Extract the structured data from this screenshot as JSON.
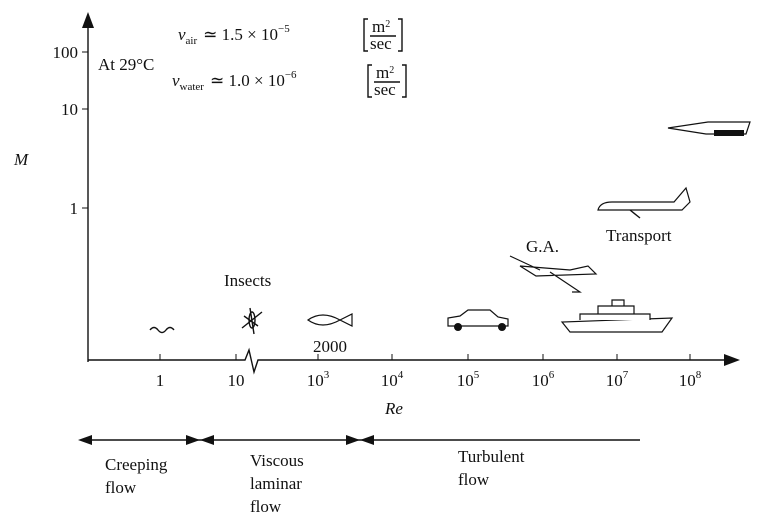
{
  "axes": {
    "y_label": "M",
    "x_label": "Re",
    "y_ticks": [
      "100",
      "10",
      "1"
    ],
    "x_ticks": [
      {
        "base": "1"
      },
      {
        "base": "10"
      },
      {
        "base": "10",
        "exp": "3"
      },
      {
        "base": "10",
        "exp": "4"
      },
      {
        "base": "10",
        "exp": "5"
      },
      {
        "base": "10",
        "exp": "6"
      },
      {
        "base": "10",
        "exp": "7"
      },
      {
        "base": "10",
        "exp": "8"
      }
    ]
  },
  "temperature": "At 29°C",
  "formulas": [
    {
      "symbol": "ν",
      "sub": "air",
      "relation": "≃ 1.5 × 10",
      "exp": "−5",
      "unit_num": "m",
      "unit_exp": "2",
      "unit_den": "sec"
    },
    {
      "symbol": "ν",
      "sub": "water",
      "relation": "≃ 1.0 × 10",
      "exp": "−6",
      "unit_num": "m",
      "unit_exp": "2",
      "unit_den": "sec"
    }
  ],
  "labels": {
    "insects": "Insects",
    "transition": "2000",
    "general_aviation": "G.A.",
    "transport": "Transport"
  },
  "regimes": [
    {
      "lines": [
        "Creeping",
        "flow"
      ]
    },
    {
      "lines": [
        "Viscous",
        "laminar",
        "flow"
      ]
    },
    {
      "lines": [
        "Turbulent",
        "flow"
      ]
    }
  ]
}
